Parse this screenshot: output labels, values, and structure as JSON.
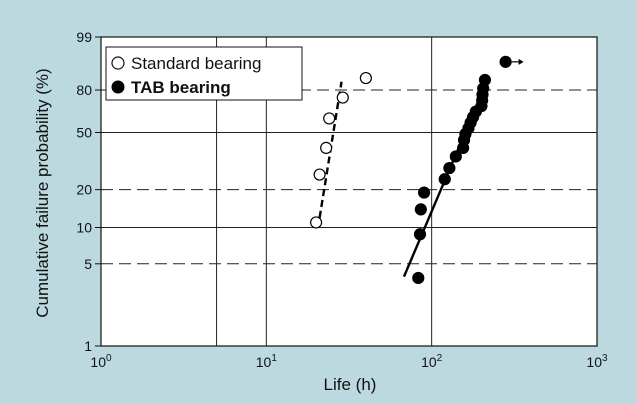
{
  "colors": {
    "background": "#bcd9df",
    "plot_area": "#ffffff",
    "grid": "#222222",
    "series_standard_fill": "#ffffff",
    "series_tab_fill": "#000000"
  },
  "chart_data": {
    "type": "scatter",
    "title": "",
    "xlabel": "Life (h)",
    "ylabel": "Cumulative failure probability  (%)",
    "x_scale": "log",
    "y_scale": "weibull",
    "xlim": [
      1,
      1000
    ],
    "ylim": [
      1,
      99
    ],
    "x_ticks": [
      {
        "value": 1,
        "base": "10",
        "exp": "0"
      },
      {
        "value": 10,
        "base": "10",
        "exp": "1"
      },
      {
        "value": 100,
        "base": "10",
        "exp": "2"
      },
      {
        "value": 1000,
        "base": "10",
        "exp": "3"
      }
    ],
    "x_minor_gridlines": [
      5
    ],
    "y_ticks": [
      1,
      5,
      10,
      20,
      50,
      80,
      99
    ],
    "y_dashed_gridlines": [
      5,
      20,
      80
    ],
    "y_solid_gridlines": [
      10,
      50
    ],
    "legend_position": "top-left",
    "series": [
      {
        "name": "Standard bearing",
        "marker": "open-circle",
        "points": [
          {
            "x": 20,
            "y": 11
          },
          {
            "x": 21,
            "y": 26
          },
          {
            "x": 23,
            "y": 40
          },
          {
            "x": 24,
            "y": 60
          },
          {
            "x": 29,
            "y": 75
          },
          {
            "x": 40,
            "y": 87
          }
        ],
        "fit_line": {
          "style": "dashed",
          "x": [
            21,
            28.5
          ],
          "y": [
            12,
            85
          ]
        }
      },
      {
        "name": "TAB bearing",
        "marker": "filled-circle",
        "points": [
          {
            "x": 83,
            "y": 3.8
          },
          {
            "x": 85,
            "y": 8.8
          },
          {
            "x": 86,
            "y": 14
          },
          {
            "x": 90,
            "y": 19
          },
          {
            "x": 120,
            "y": 24
          },
          {
            "x": 128,
            "y": 29
          },
          {
            "x": 140,
            "y": 35
          },
          {
            "x": 155,
            "y": 40
          },
          {
            "x": 157,
            "y": 45
          },
          {
            "x": 160,
            "y": 49
          },
          {
            "x": 167,
            "y": 53
          },
          {
            "x": 172,
            "y": 57
          },
          {
            "x": 178,
            "y": 61
          },
          {
            "x": 185,
            "y": 65
          },
          {
            "x": 200,
            "y": 69
          },
          {
            "x": 202,
            "y": 73
          },
          {
            "x": 203,
            "y": 77
          },
          {
            "x": 205,
            "y": 81
          },
          {
            "x": 210,
            "y": 86
          },
          {
            "x": 280,
            "y": 94,
            "suspended": true
          }
        ],
        "fit_line": {
          "style": "solid",
          "x": [
            68,
            205
          ],
          "y": [
            3.9,
            80
          ]
        }
      }
    ]
  }
}
